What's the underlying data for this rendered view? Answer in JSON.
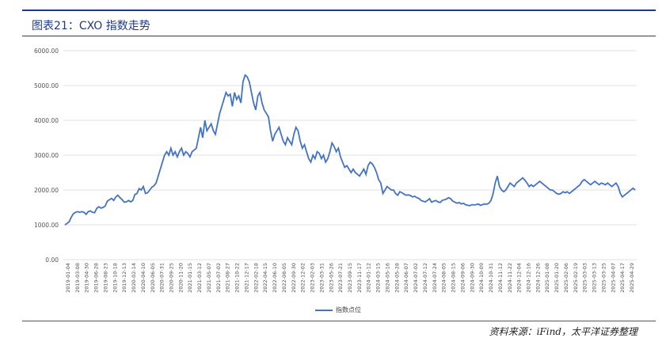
{
  "header": {
    "title": "图表21：CXO 指数走势"
  },
  "footer": {
    "source": "资料来源：iFind，太平洋证券整理"
  },
  "colors": {
    "accent": "#1f3a8a",
    "line": "#4472c4",
    "grid": "#d9d9d9"
  },
  "chart_data": {
    "type": "line",
    "title": "",
    "xlabel": "",
    "ylabel": "",
    "ylim": [
      0,
      6000
    ],
    "grid": "horizontal",
    "legend_placement": "bottom-center",
    "y_ticks": [
      "0.00",
      "1000.00",
      "2000.00",
      "3000.00",
      "4000.00",
      "5000.00",
      "6000.00"
    ],
    "x_ticks": [
      "2019-01-04",
      "2019-03-08",
      "2019-04-30",
      "2019-06-28",
      "2019-08-23",
      "2019-10-18",
      "2019-12-13",
      "2020-02-14",
      "2020-04-10",
      "2020-06-05",
      "2020-07-31",
      "2020-09-25",
      "2020-11-20",
      "2021-01-15",
      "2021-03-12",
      "2021-05-07",
      "2021-07-02",
      "2021-08-27",
      "2021-10-22",
      "2021-12-17",
      "2022-02-18",
      "2022-04-15",
      "2022-06-10",
      "2022-08-05",
      "2022-09-30",
      "2022-12-02",
      "2023-02-03",
      "2023-03-31",
      "2023-05-26",
      "2023-07-21",
      "2023-09-15",
      "2023-11-17",
      "2024-01-12",
      "2024-03-15",
      "2024-05-16",
      "2024-05-28",
      "2024-06-07",
      "2024-07-02",
      "2024-07-12",
      "2024-07-24",
      "2024-08-05",
      "2024-08-15",
      "2024-09-06",
      "2024-09-30",
      "2024-10-09",
      "2024-10-31",
      "2024-11-12",
      "2024-11-22",
      "2024-12-04",
      "2024-12-16",
      "2024-12-26",
      "2025-01-08",
      "2025-01-20",
      "2025-02-06",
      "2025-02-19",
      "2025-03-03",
      "2025-03-13",
      "2025-03-25",
      "2025-04-07",
      "2025-04-17",
      "2025-04-29"
    ],
    "series": [
      {
        "name": "指数点位",
        "values": [
          1000,
          1040,
          1090,
          1220,
          1320,
          1360,
          1380,
          1360,
          1380,
          1360,
          1300,
          1380,
          1400,
          1360,
          1350,
          1470,
          1520,
          1480,
          1500,
          1540,
          1680,
          1720,
          1760,
          1700,
          1800,
          1850,
          1780,
          1720,
          1650,
          1660,
          1700,
          1660,
          1700,
          1870,
          1900,
          2040,
          2000,
          2100,
          1900,
          1920,
          2000,
          2080,
          2120,
          2200,
          2400,
          2600,
          2800,
          3000,
          3100,
          3000,
          3200,
          3000,
          3100,
          2950,
          3100,
          3200,
          3000,
          3100,
          3050,
          2950,
          3100,
          3150,
          3200,
          3500,
          3800,
          3500,
          4000,
          3700,
          3800,
          3900,
          3700,
          3600,
          3900,
          4200,
          4400,
          4600,
          4800,
          4700,
          4750,
          4400,
          4800,
          4600,
          4700,
          4500,
          5100,
          5300,
          5250,
          5100,
          4800,
          4500,
          4300,
          4700,
          4800,
          4500,
          4300,
          4200,
          4100,
          3700,
          3400,
          3600,
          3700,
          3800,
          3600,
          3400,
          3300,
          3500,
          3400,
          3300,
          3600,
          3800,
          3700,
          3400,
          3200,
          3300,
          3100,
          2900,
          2800,
          3000,
          2900,
          3100,
          3050,
          2900,
          3000,
          2800,
          2900,
          3100,
          3350,
          3250,
          3100,
          3200,
          2950,
          2800,
          2650,
          2700,
          2600,
          2500,
          2600,
          2500,
          2450,
          2400,
          2500,
          2600,
          2450,
          2700,
          2800,
          2750,
          2650,
          2500,
          2300,
          2200,
          1900,
          2000,
          2100,
          2050,
          2000,
          2000,
          1900,
          1850,
          1950,
          1920,
          1880,
          1850,
          1860,
          1840,
          1800,
          1820,
          1780,
          1760,
          1700,
          1680,
          1660,
          1700,
          1750,
          1650,
          1680,
          1700,
          1660,
          1640,
          1700,
          1720,
          1740,
          1780,
          1750,
          1680,
          1650,
          1620,
          1640,
          1600,
          1620,
          1580,
          1560,
          1550,
          1580,
          1570,
          1580,
          1600,
          1560,
          1580,
          1600,
          1590,
          1620,
          1700,
          1900,
          2200,
          2400,
          2100,
          2000,
          1950,
          2000,
          2100,
          2200,
          2150,
          2100,
          2200,
          2250,
          2300,
          2350,
          2280,
          2200,
          2100,
          2150,
          2100,
          2150,
          2200,
          2250,
          2200,
          2150,
          2100,
          2050,
          2000,
          2000,
          1950,
          1900,
          1880,
          1900,
          1950,
          1920,
          1950,
          1900,
          1950,
          2000,
          2050,
          2100,
          2150,
          2250,
          2300,
          2250,
          2200,
          2150,
          2200,
          2250,
          2200,
          2150,
          2200,
          2180,
          2150,
          2200,
          2150,
          2100,
          2150,
          2200,
          2100,
          1900,
          1800,
          1850,
          1900,
          1950,
          2000,
          2050,
          2000
        ]
      }
    ]
  }
}
